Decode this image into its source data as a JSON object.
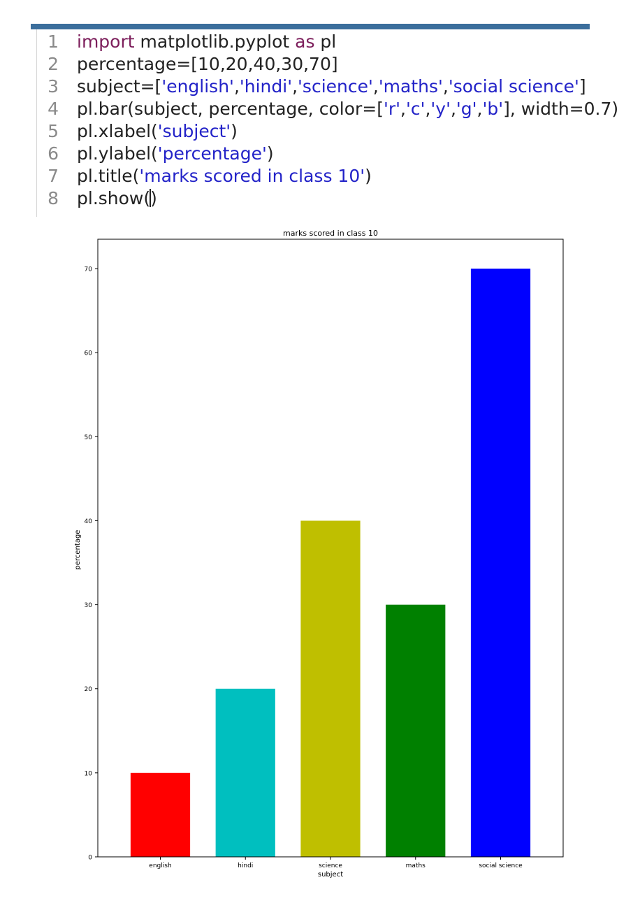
{
  "code": {
    "lines": [
      {
        "num": "1",
        "tokens": [
          {
            "t": "import",
            "k": "kw"
          },
          {
            "t": " matplotlib.pyplot ",
            "k": ""
          },
          {
            "t": "as",
            "k": "kw"
          },
          {
            "t": " pl",
            "k": ""
          }
        ]
      },
      {
        "num": "2",
        "tokens": [
          {
            "t": "percentage=[10,20,40,30,70]",
            "k": ""
          }
        ]
      },
      {
        "num": "3",
        "tokens": [
          {
            "t": "subject=[",
            "k": ""
          },
          {
            "t": "'english'",
            "k": "str"
          },
          {
            "t": ",",
            "k": ""
          },
          {
            "t": "'hindi'",
            "k": "str"
          },
          {
            "t": ",",
            "k": ""
          },
          {
            "t": "'science'",
            "k": "str"
          },
          {
            "t": ",",
            "k": ""
          },
          {
            "t": "'maths'",
            "k": "str"
          },
          {
            "t": ",",
            "k": ""
          },
          {
            "t": "'social science'",
            "k": "str"
          },
          {
            "t": "]",
            "k": ""
          }
        ]
      },
      {
        "num": "4",
        "tokens": [
          {
            "t": "pl.bar(subject, percentage, color=[",
            "k": ""
          },
          {
            "t": "'r'",
            "k": "str"
          },
          {
            "t": ",",
            "k": ""
          },
          {
            "t": "'c'",
            "k": "str"
          },
          {
            "t": ",",
            "k": ""
          },
          {
            "t": "'y'",
            "k": "str"
          },
          {
            "t": ",",
            "k": ""
          },
          {
            "t": "'g'",
            "k": "str"
          },
          {
            "t": ",",
            "k": ""
          },
          {
            "t": "'b'",
            "k": "str"
          },
          {
            "t": "], width=0.7)",
            "k": ""
          }
        ]
      },
      {
        "num": "5",
        "tokens": [
          {
            "t": "pl.xlabel(",
            "k": ""
          },
          {
            "t": "'subject'",
            "k": "str"
          },
          {
            "t": ")",
            "k": ""
          }
        ]
      },
      {
        "num": "6",
        "tokens": [
          {
            "t": "pl.ylabel(",
            "k": ""
          },
          {
            "t": "'percentage'",
            "k": "str"
          },
          {
            "t": ")",
            "k": ""
          }
        ]
      },
      {
        "num": "7",
        "tokens": [
          {
            "t": "pl.title(",
            "k": ""
          },
          {
            "t": "'marks scored in class 10'",
            "k": "str"
          },
          {
            "t": ")",
            "k": ""
          }
        ]
      },
      {
        "num": "8",
        "tokens": [
          {
            "t": "pl.show(",
            "k": ""
          },
          {
            "t": "",
            "k": "cursor"
          },
          {
            "t": ")",
            "k": ""
          }
        ]
      }
    ]
  },
  "chart_data": {
    "type": "bar",
    "title": "marks scored in class 10",
    "xlabel": "subject",
    "ylabel": "percentage",
    "categories": [
      "english",
      "hindi",
      "science",
      "maths",
      "social science"
    ],
    "values": [
      10,
      20,
      40,
      30,
      70
    ],
    "colors": [
      "#ff0000",
      "#00bfbf",
      "#bfbf00",
      "#008000",
      "#0000ff"
    ],
    "ylim": [
      0,
      73.5
    ],
    "yticks": [
      0,
      10,
      20,
      30,
      40,
      50,
      60,
      70
    ],
    "bar_width": 0.7,
    "grid": false,
    "legend": false
  }
}
